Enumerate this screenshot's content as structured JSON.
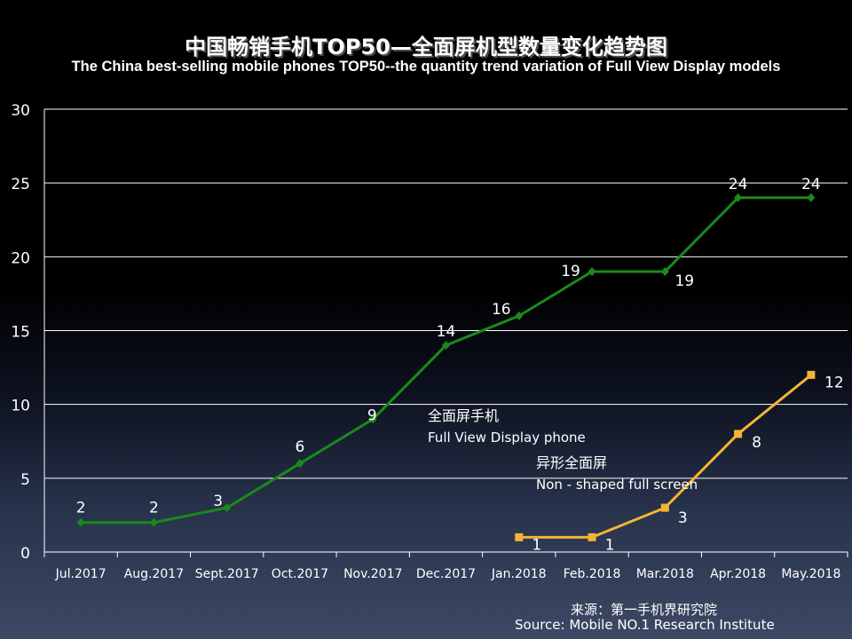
{
  "chart_data": {
    "type": "line",
    "title": "中国畅销手机TOP50—全面屏机型数量变化趋势图",
    "subtitle": "The China best-selling mobile phones TOP50--the quantity trend variation of Full View Display models",
    "categories": [
      "Jul.2017",
      "Aug.2017",
      "Sept.2017",
      "Oct.2017",
      "Nov.2017",
      "Dec.2017",
      "Jan.2018",
      "Feb.2018",
      "Mar.2018",
      "Apr.2018",
      "May.2018"
    ],
    "ylim": [
      0,
      30
    ],
    "yticks": [
      "0",
      "5",
      "10",
      "15",
      "20",
      "25",
      "30"
    ],
    "grid": true,
    "series": [
      {
        "name": "全面屏手机",
        "name_en": "Full View Display phone",
        "color": "#1a8a1a",
        "marker": "diamond",
        "values": [
          2,
          2,
          3,
          6,
          9,
          14,
          16,
          19,
          19,
          24,
          24
        ],
        "labels": [
          "2",
          "2",
          "3",
          "6",
          "9",
          "14",
          "16",
          "19",
          "19",
          "24",
          "24"
        ]
      },
      {
        "name": "异形全面屏",
        "name_en": "Non - shaped full screen",
        "color": "#f5b335",
        "marker": "square",
        "values": [
          null,
          null,
          null,
          null,
          null,
          null,
          1,
          1,
          3,
          8,
          12
        ],
        "labels": [
          "",
          "",
          "",
          "",
          "",
          "",
          "1",
          "1",
          "3",
          "8",
          "12"
        ]
      }
    ]
  },
  "source": {
    "cn": "来源：第一手机界研究院",
    "en": "Source: Mobile NO.1 Research Institute"
  }
}
